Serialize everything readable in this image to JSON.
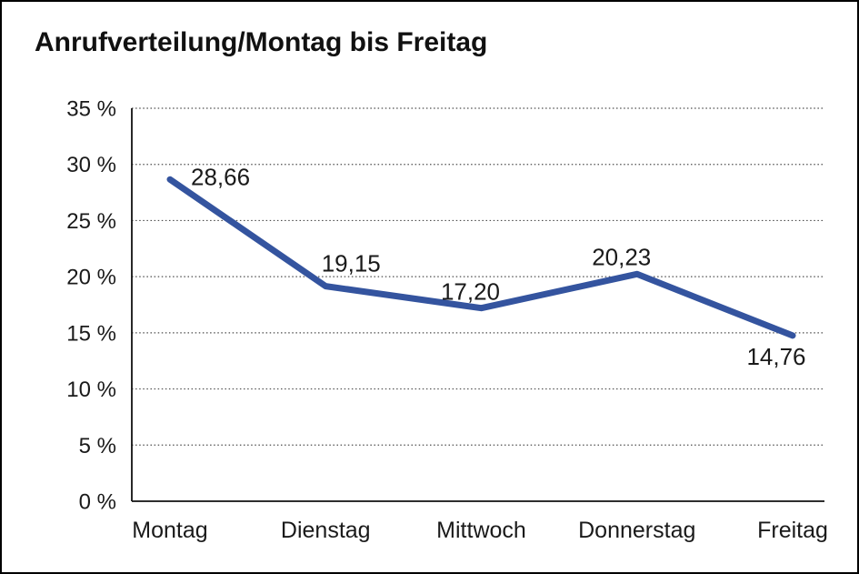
{
  "window": {
    "background_color": "#ffffff",
    "frame_color": "#000000"
  },
  "chart_data": {
    "type": "line",
    "title": "Anrufverteilung/Montag bis Freitag",
    "categories": [
      "Montag",
      "Dienstag",
      "Mittwoch",
      "Donnerstag",
      "Freitag"
    ],
    "series": [
      {
        "name": "Anrufverteilung",
        "values": [
          28.66,
          19.15,
          17.2,
          20.23,
          14.76
        ],
        "value_labels": [
          "28,66",
          "19,15",
          "17,20",
          "20,23",
          "14,76"
        ]
      }
    ],
    "xlabel": "",
    "ylabel": "",
    "ylim": [
      0,
      35
    ],
    "yticks": [
      0,
      5,
      10,
      15,
      20,
      25,
      30,
      35
    ],
    "ytick_labels": [
      "0 %",
      "5 %",
      "10 %",
      "15 %",
      "20 %",
      "25 %",
      "30 %",
      "35 %"
    ],
    "grid": "horizontal-dotted",
    "legend_position": "none",
    "line_color": "#34549f",
    "grid_color": "#4d4d4d",
    "axis_color": "#111111",
    "text_color": "#1a1a1a"
  }
}
